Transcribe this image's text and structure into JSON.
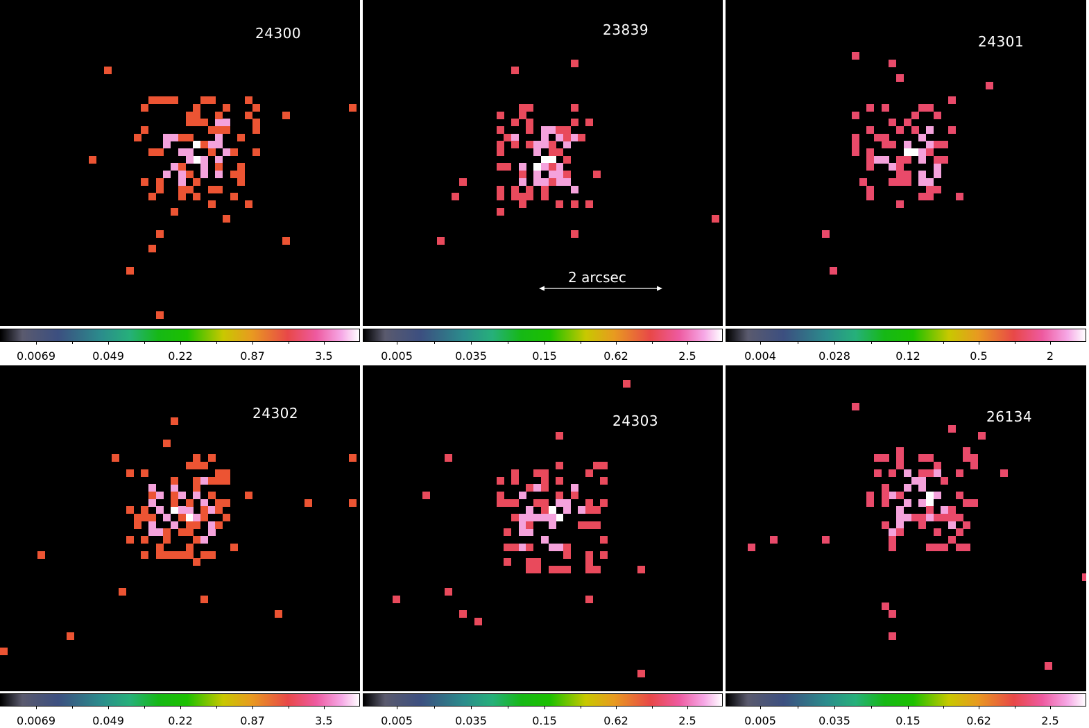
{
  "panels": [
    {
      "obsid": "24300",
      "color": "#ec5433",
      "ticks": [
        "0.0069",
        "0.049",
        "0.22",
        "0.87",
        "3.5"
      ]
    },
    {
      "obsid": "23839",
      "color": "#e94a5c",
      "ticks": [
        "0.005",
        "0.035",
        "0.15",
        "0.62",
        "2.5"
      ],
      "scale_label": "2 arcsec"
    },
    {
      "obsid": "24301",
      "color": "#e94a6a",
      "ticks": [
        "0.004",
        "0.028",
        "0.12",
        "0.5",
        "2"
      ]
    },
    {
      "obsid": "24302",
      "color": "#ec5433",
      "ticks": [
        "0.0069",
        "0.049",
        "0.22",
        "0.87",
        "3.5"
      ]
    },
    {
      "obsid": "24303",
      "color": "#e94a5c",
      "ticks": [
        "0.005",
        "0.035",
        "0.15",
        "0.62",
        "2.5"
      ]
    },
    {
      "obsid": "26134",
      "color": "#e94a6a",
      "ticks": [
        "0.005",
        "0.035",
        "0.15",
        "0.62",
        "2.5"
      ]
    }
  ],
  "colors": {
    "bright": "#f4a2dc",
    "core": "#ffffff",
    "background": "#000000"
  }
}
